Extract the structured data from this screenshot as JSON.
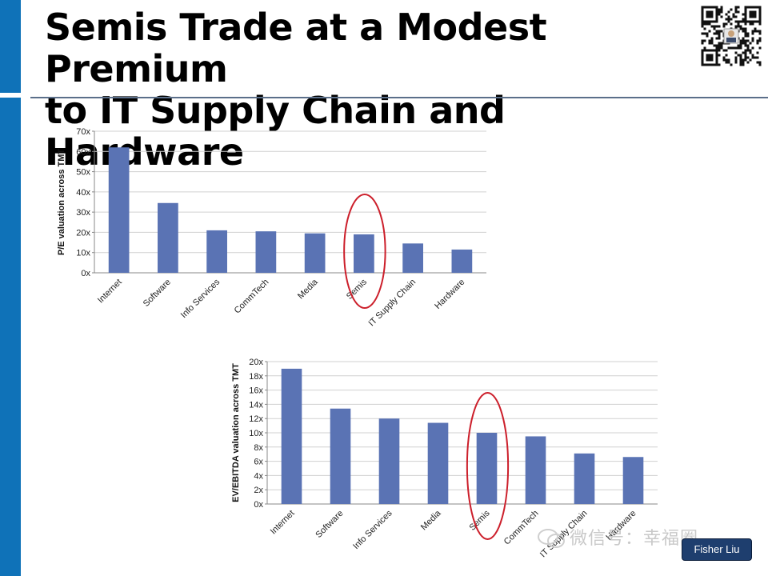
{
  "slide": {
    "title_line1": "Semis Trade at a Modest Premium",
    "title_line2": "to IT Supply Chain and Hardware",
    "accent_color": "#0f72b8",
    "watermark_text": "微信号：幸福圈",
    "author_badge": "Fisher Liu"
  },
  "chart_data": [
    {
      "type": "bar",
      "ylabel": "P/E valuation across TMT",
      "categories": [
        "Internet",
        "Software",
        "Info Services",
        "CommTech",
        "Media",
        "Semis",
        "IT Supply Chain",
        "Hardware"
      ],
      "values": [
        62,
        34.5,
        21,
        20.5,
        19.5,
        19,
        14.5,
        11.5
      ],
      "ylim": [
        0,
        70
      ],
      "yticks": [
        0,
        10,
        20,
        30,
        40,
        50,
        60,
        70
      ],
      "tick_suffix": "x",
      "highlight": "Semis",
      "bar_color": "#5a73b4",
      "highlight_color": "#cc1f2b",
      "grid": true
    },
    {
      "type": "bar",
      "ylabel": "EV/EBITDA valuation across TMT",
      "categories": [
        "Internet",
        "Software",
        "Info Services",
        "Media",
        "Semis",
        "CommTech",
        "IT Supply Chain",
        "Hardware"
      ],
      "values": [
        19,
        13.4,
        12,
        11.4,
        10,
        9.5,
        7.1,
        6.6
      ],
      "ylim": [
        0,
        20
      ],
      "yticks": [
        0,
        2,
        4,
        6,
        8,
        10,
        12,
        14,
        16,
        18,
        20
      ],
      "tick_suffix": "x",
      "highlight": "Semis",
      "bar_color": "#5a73b4",
      "highlight_color": "#cc1f2b",
      "grid": true
    }
  ]
}
